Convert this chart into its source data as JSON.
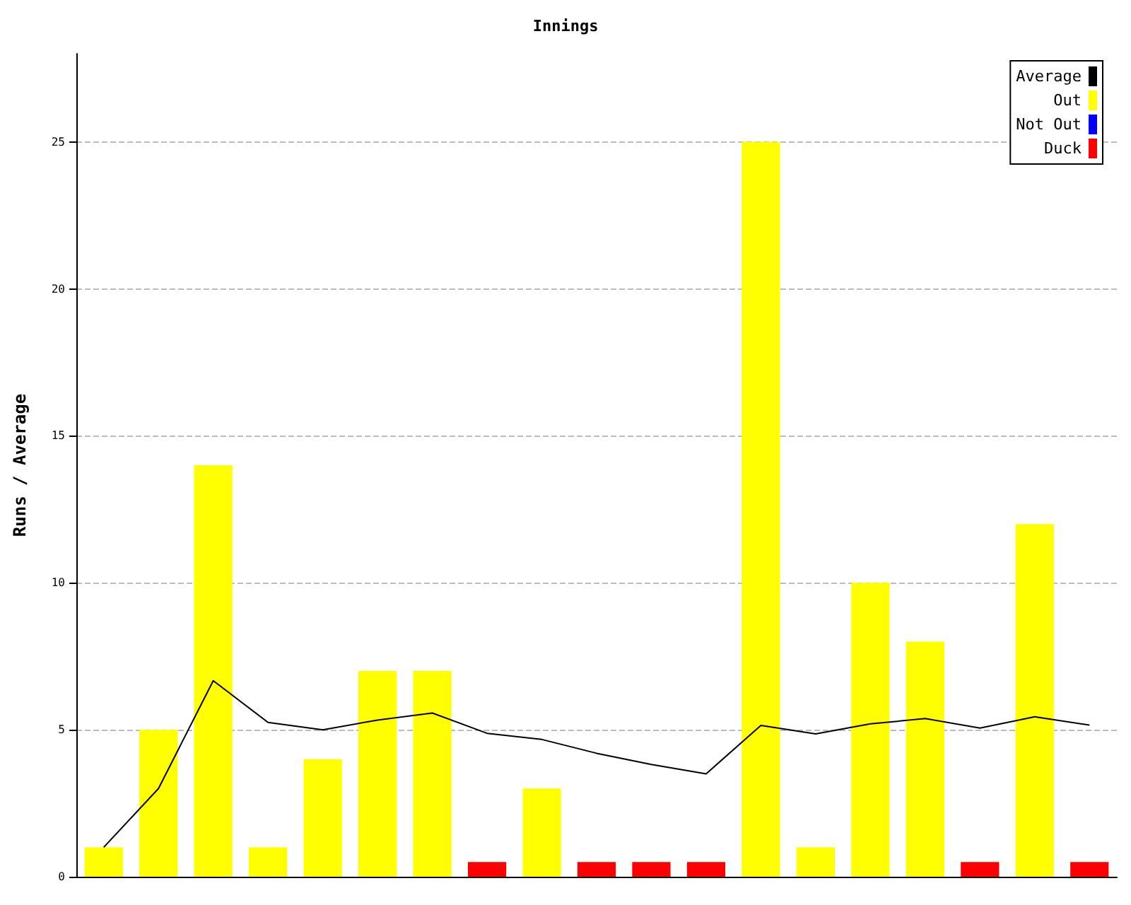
{
  "chart_data": {
    "type": "bar",
    "title": "Innings",
    "ylabel": "Runs / Average",
    "categories": [
      null,
      null,
      null,
      null,
      null,
      null,
      null,
      null,
      null,
      null,
      null,
      null,
      null,
      null,
      null,
      null,
      null,
      null,
      null
    ],
    "series": [
      {
        "name": "Average",
        "type": "line",
        "color": "#000000",
        "values": [
          1,
          3,
          6.67,
          5.25,
          5,
          5.33,
          5.57,
          4.88,
          4.67,
          4.2,
          3.82,
          3.5,
          5.15,
          4.86,
          5.2,
          5.38,
          5.06,
          5.44,
          5.16
        ]
      },
      {
        "name": "Out",
        "color": "#ffff00",
        "values": [
          1,
          5,
          14,
          1,
          4,
          7,
          7,
          null,
          3,
          null,
          null,
          null,
          25,
          1,
          10,
          8,
          null,
          12,
          null
        ]
      },
      {
        "name": "Not Out",
        "color": "#0000ff",
        "values": [
          null,
          null,
          null,
          null,
          null,
          null,
          null,
          null,
          null,
          null,
          null,
          null,
          null,
          null,
          null,
          null,
          null,
          null,
          null
        ]
      },
      {
        "name": "Duck",
        "color": "#ff0000",
        "values": [
          null,
          null,
          null,
          null,
          null,
          null,
          null,
          0.5,
          null,
          0.5,
          0.5,
          0.5,
          null,
          null,
          null,
          null,
          0.5,
          null,
          0.5
        ]
      }
    ],
    "stacked": true,
    "ylim": [
      0,
      28
    ],
    "yticks": [
      0,
      5,
      10,
      15,
      20,
      25
    ],
    "grid": "y",
    "legend": "top right",
    "marker": "none",
    "line_style": "solid",
    "tick_labels": "y"
  }
}
